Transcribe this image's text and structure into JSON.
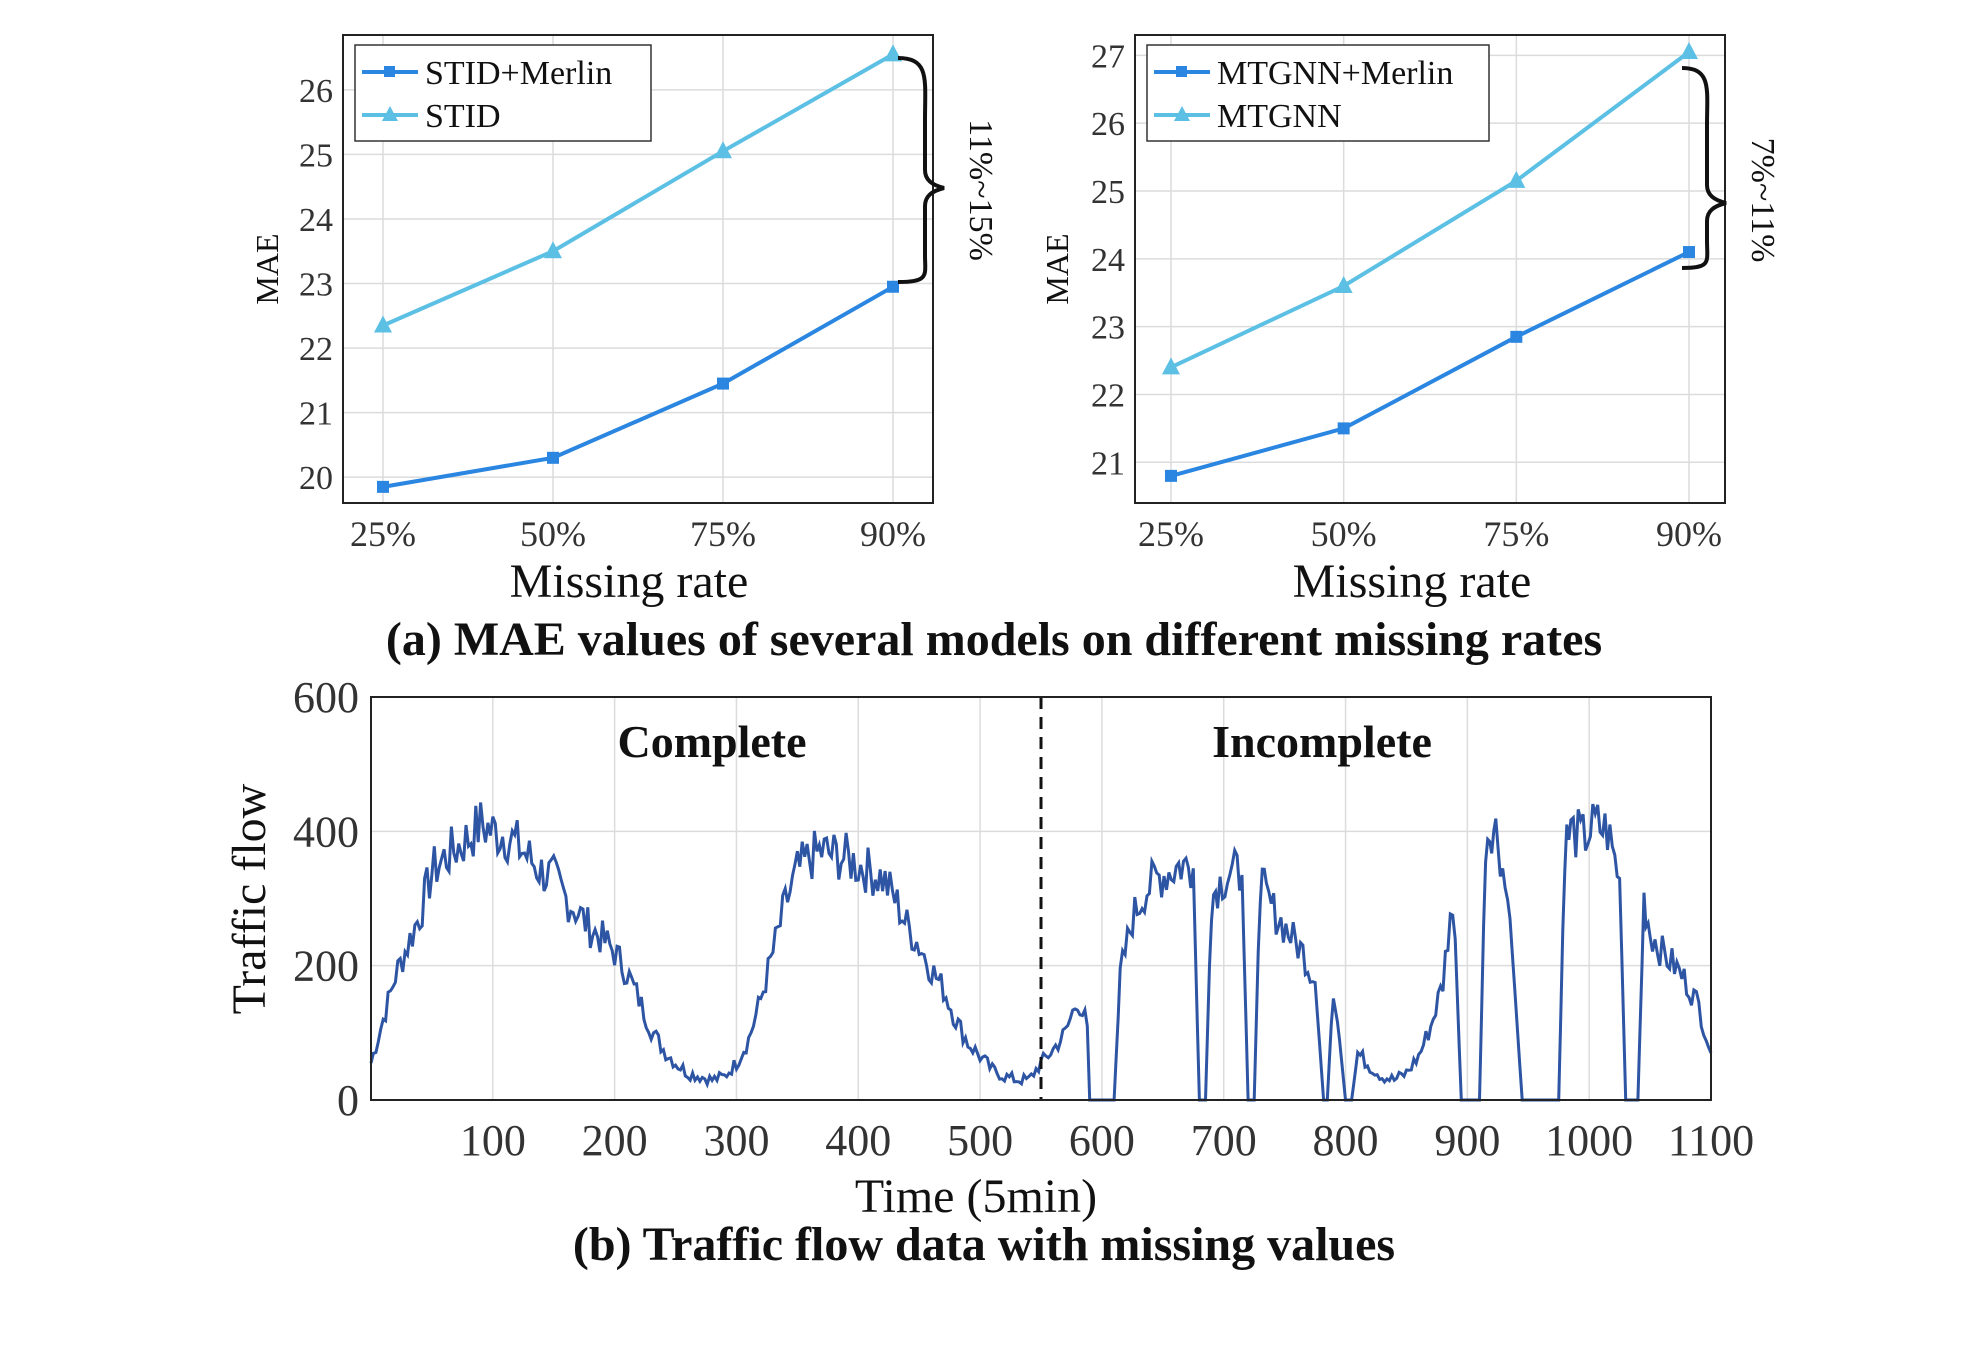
{
  "figure_caption_a": "(a) MAE values of several models on different missing rates",
  "figure_caption_b": "(b) Traffic flow data with missing values",
  "colors": {
    "merlin": "#2a86e0",
    "base": "#5cc0e4",
    "flow": "#2d55a4"
  },
  "chart_data": [
    {
      "id": "stid",
      "type": "line",
      "categories": [
        "25%",
        "50%",
        "75%",
        "90%"
      ],
      "series": [
        {
          "name": "STID+Merlin",
          "values": [
            19.85,
            20.3,
            21.45,
            22.95
          ],
          "marker": "square"
        },
        {
          "name": "STID",
          "values": [
            22.35,
            23.5,
            25.05,
            26.55
          ],
          "marker": "triangle"
        }
      ],
      "xlabel": "Missing rate",
      "ylabel": "MAE",
      "ylim": [
        19.6,
        26.85
      ],
      "yticks": [
        20,
        21,
        22,
        23,
        24,
        25,
        26
      ],
      "annotation": "11%~15%",
      "legend": "top-left",
      "grid": true
    },
    {
      "id": "mtgnn",
      "type": "line",
      "categories": [
        "25%",
        "50%",
        "75%",
        "90%"
      ],
      "series": [
        {
          "name": "MTGNN+Merlin",
          "values": [
            20.8,
            21.5,
            22.85,
            24.1
          ],
          "marker": "square"
        },
        {
          "name": "MTGNN",
          "values": [
            22.4,
            23.6,
            25.15,
            27.05
          ],
          "marker": "triangle"
        }
      ],
      "xlabel": "Missing rate",
      "ylabel": "MAE",
      "ylim": [
        20.4,
        27.3
      ],
      "yticks": [
        21,
        22,
        23,
        24,
        25,
        26,
        27
      ],
      "annotation": "7%~11%",
      "legend": "top-left",
      "grid": true
    },
    {
      "id": "traffic",
      "type": "line",
      "xlabel": "Time (5min)",
      "ylabel": "Traffic flow",
      "xlim": [
        0,
        1100
      ],
      "ylim": [
        0,
        600
      ],
      "xticks": [
        100,
        200,
        300,
        400,
        500,
        600,
        700,
        800,
        900,
        1000,
        1100
      ],
      "yticks": [
        0,
        200,
        400,
        600
      ],
      "divider_x": 550,
      "regions": [
        "Complete",
        "Incomplete"
      ],
      "grid": true,
      "series": [
        {
          "name": "Traffic flow",
          "x": [
            0,
            10,
            20,
            30,
            40,
            50,
            60,
            70,
            80,
            90,
            100,
            110,
            120,
            130,
            140,
            150,
            160,
            170,
            180,
            190,
            200,
            210,
            220,
            230,
            240,
            250,
            260,
            270,
            280,
            290,
            300,
            310,
            320,
            330,
            340,
            350,
            360,
            370,
            380,
            390,
            400,
            410,
            420,
            430,
            440,
            450,
            460,
            470,
            480,
            490,
            500,
            510,
            520,
            530,
            540,
            550,
            560,
            570,
            580,
            588,
            590,
            600,
            610,
            615,
            625,
            635,
            645,
            655,
            665,
            675,
            680,
            685,
            690,
            695,
            705,
            715,
            720,
            725,
            730,
            735,
            745,
            755,
            765,
            775,
            782,
            785,
            790,
            795,
            800,
            805,
            810,
            820,
            830,
            840,
            850,
            860,
            870,
            880,
            886,
            890,
            895,
            905,
            910,
            915,
            920,
            925,
            935,
            945,
            975,
            980,
            985,
            995,
            1005,
            1015,
            1025,
            1030,
            1035,
            1040,
            1045,
            1050,
            1060,
            1070,
            1080,
            1090,
            1100
          ],
          "y": [
            55,
            120,
            185,
            230,
            275,
            340,
            360,
            375,
            390,
            410,
            400,
            395,
            380,
            360,
            340,
            330,
            300,
            280,
            255,
            240,
            220,
            190,
            150,
            105,
            75,
            55,
            40,
            35,
            30,
            35,
            55,
            90,
            150,
            220,
            290,
            340,
            360,
            370,
            365,
            360,
            350,
            340,
            330,
            300,
            260,
            230,
            195,
            165,
            120,
            85,
            65,
            45,
            35,
            30,
            30,
            55,
            75,
            100,
            150,
            110,
            0,
            0,
            0,
            185,
            270,
            310,
            330,
            340,
            350,
            345,
            0,
            0,
            300,
            320,
            340,
            335,
            0,
            0,
            330,
            300,
            270,
            245,
            220,
            175,
            0,
            0,
            170,
            90,
            0,
            0,
            70,
            50,
            35,
            30,
            40,
            65,
            110,
            175,
            280,
            240,
            0,
            0,
            0,
            390,
            410,
            395,
            270,
            0,
            0,
            380,
            400,
            390,
            410,
            400,
            330,
            0,
            0,
            0,
            300,
            250,
            220,
            200,
            175,
            140,
            70
          ]
        }
      ]
    }
  ]
}
